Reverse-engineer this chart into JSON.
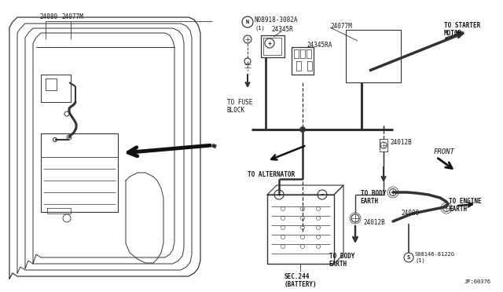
{
  "bg_color": "#ffffff",
  "lc": "#333333",
  "diagram_id": "JP:00376",
  "labels": {
    "24080_top": "24080",
    "24077M_top": "24077M",
    "N08918": "N08918-3082A",
    "N08918_sub": "(1)",
    "to_fuse": "TO FUSE\nBLOCK",
    "to_alternator": "TO ALTERNATOR",
    "24345R": "24345R",
    "24077M_right": "24077M",
    "24345RA": "24345RA",
    "to_starter": "TO STARTER\nMOTOR",
    "24012B_top": "24012B",
    "front": "FRONT",
    "sec244": "SEC.244\n(BATTERY)",
    "24012B_bot": "24012B",
    "24080_bot": "24080",
    "to_body_earth1": "TO BODY\nEARTH",
    "to_body_earth2": "TO BODY\nEARTH",
    "to_engine_earth": "TO ENGINE\nEARTH",
    "S08146": "S08146-8122G\n(1)"
  },
  "fs": 5.5
}
